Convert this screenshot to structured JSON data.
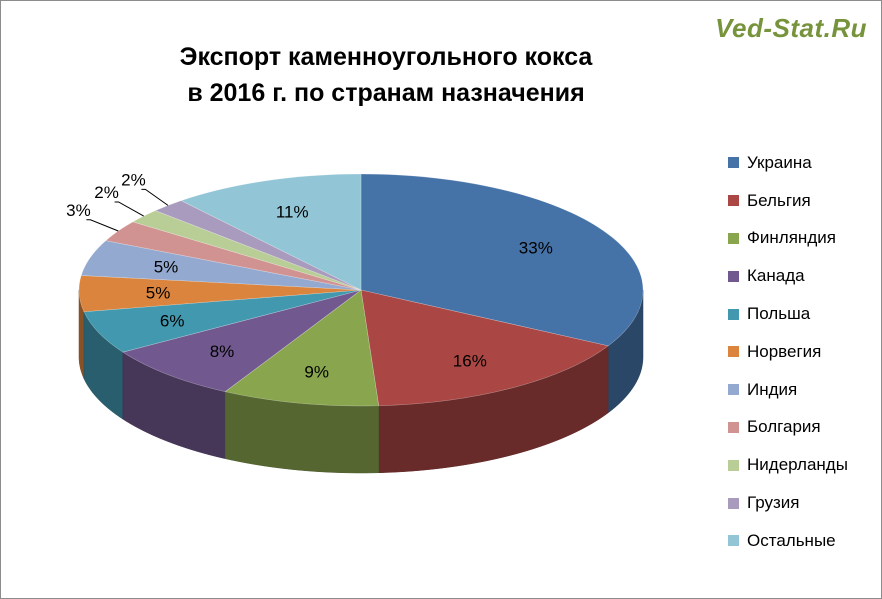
{
  "watermark": "Ved-Stat.Ru",
  "chart_data": {
    "type": "pie",
    "title": [
      "Экспорт каменноугольного кокса",
      "в 2016 г. по странам назначения"
    ],
    "legend_position": "right",
    "slices": [
      {
        "name": "Украина",
        "value": 33,
        "label": "33%",
        "color": "#4572a7"
      },
      {
        "name": "Бельгия",
        "value": 16,
        "label": "16%",
        "color": "#aa4643"
      },
      {
        "name": "Финляндия",
        "value": 9,
        "label": "9%",
        "color": "#89a54e"
      },
      {
        "name": "Канада",
        "value": 8,
        "label": "8%",
        "color": "#71588f"
      },
      {
        "name": "Польша",
        "value": 6,
        "label": "6%",
        "color": "#4198af"
      },
      {
        "name": "Норвегия",
        "value": 5,
        "label": "5%",
        "color": "#db843d"
      },
      {
        "name": "Индия",
        "value": 5,
        "label": "5%",
        "color": "#93a9cf"
      },
      {
        "name": "Болгария",
        "value": 3,
        "label": "3%",
        "color": "#d19392"
      },
      {
        "name": "Нидерланды",
        "value": 2,
        "label": "2%",
        "color": "#b9cd96"
      },
      {
        "name": "Грузия",
        "value": 2,
        "label": "2%",
        "color": "#a99bbd"
      },
      {
        "name": "Остальные",
        "value": 11,
        "label": "11%",
        "color": "#92c6d6"
      }
    ]
  }
}
